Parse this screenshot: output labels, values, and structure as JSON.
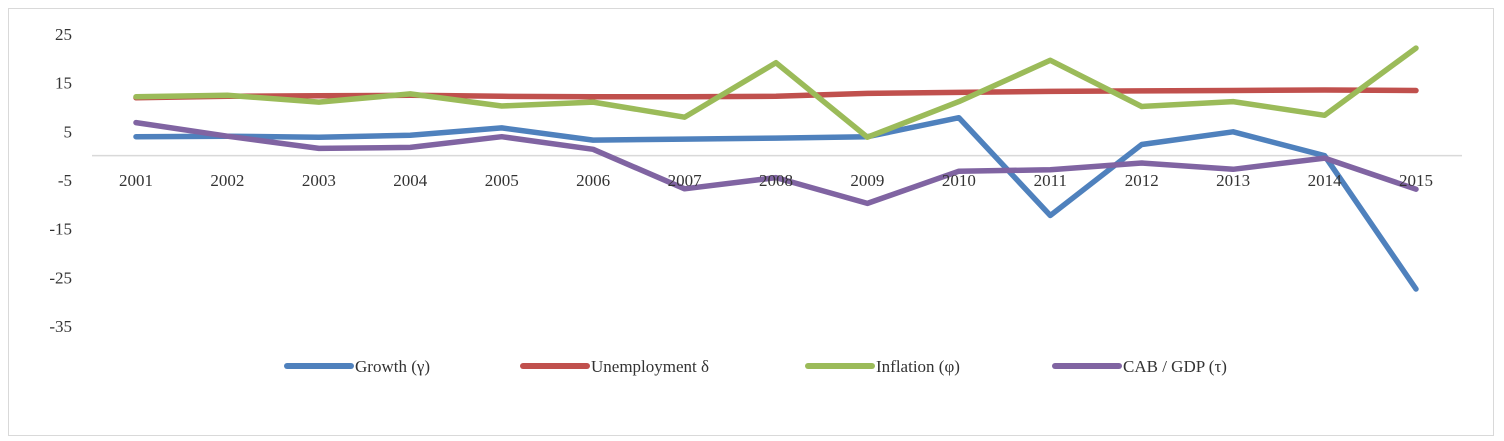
{
  "chart_data": {
    "type": "line",
    "title": "",
    "xlabel": "",
    "ylabel": "",
    "categories": [
      "2001",
      "2002",
      "2003",
      "2004",
      "2005",
      "2006",
      "2007",
      "2008",
      "2009",
      "2010",
      "2011",
      "2012",
      "2013",
      "2014",
      "2015"
    ],
    "y_ticks": [
      "25",
      "15",
      "5",
      "-5",
      "-15",
      "-25",
      "-35"
    ],
    "ylim": [
      -35,
      25
    ],
    "grid": false,
    "legend_position": "bottom",
    "series": [
      {
        "name": "Growth (γ)",
        "color": "#4f81bd",
        "values": [
          3.9,
          4.0,
          3.8,
          4.2,
          5.7,
          3.2,
          3.4,
          3.6,
          3.9,
          7.8,
          -12.3,
          2.3,
          4.9,
          0.0,
          -27.4
        ]
      },
      {
        "name": "Unemployment δ",
        "color": "#c0504d",
        "values": [
          11.9,
          12.2,
          12.3,
          12.4,
          12.2,
          12.1,
          12.1,
          12.2,
          12.8,
          13.0,
          13.2,
          13.3,
          13.4,
          13.5,
          13.4
        ]
      },
      {
        "name": "Inflation (φ)",
        "color": "#9bbb59",
        "values": [
          12.1,
          12.4,
          11.0,
          12.7,
          10.2,
          11.0,
          7.9,
          19.1,
          3.8,
          11.1,
          19.6,
          10.1,
          11.1,
          8.3,
          22.1
        ]
      },
      {
        "name": "CAB / GDP (τ)",
        "color": "#8064a2",
        "values": [
          6.8,
          4.0,
          1.5,
          1.7,
          3.9,
          1.3,
          -6.8,
          -4.5,
          -9.8,
          -3.2,
          -2.9,
          -1.5,
          -2.8,
          -0.5,
          -6.9
        ]
      }
    ]
  }
}
